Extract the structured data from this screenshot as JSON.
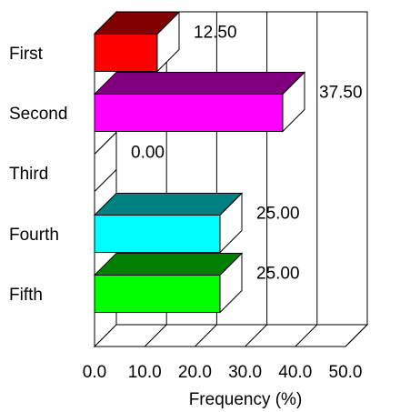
{
  "chart_data": {
    "type": "bar",
    "orientation": "horizontal",
    "three_d": true,
    "categories": [
      "First",
      "Second",
      "Third",
      "Fourth",
      "Fifth"
    ],
    "values": [
      12.5,
      37.5,
      0.0,
      25.0,
      25.0
    ],
    "value_labels": [
      "12.50",
      "37.50",
      "0.00",
      "25.00",
      "25.00"
    ],
    "colors": [
      "#ff0000",
      "#ff00ff",
      "#ffffff",
      "#00ffff",
      "#00ff00"
    ],
    "top_colors": [
      "#800000",
      "#800080",
      "#ffffff",
      "#008080",
      "#008000"
    ],
    "xlabel": "Frequency (%)",
    "xlim": [
      0,
      50
    ],
    "xticks": [
      "0.0",
      "10.0",
      "20.0",
      "30.0",
      "40.0",
      "50.0"
    ],
    "grid": true
  }
}
